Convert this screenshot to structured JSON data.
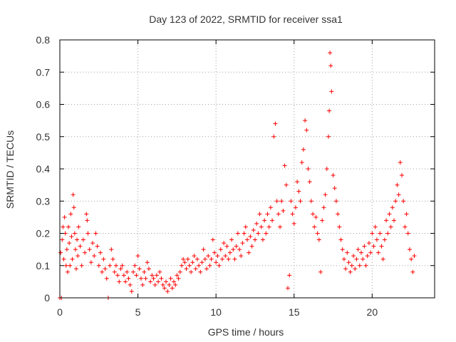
{
  "chart_data": {
    "type": "scatter",
    "title": "Day 123 of 2022, SRMTID for receiver ssa1",
    "xlabel": "GPS time / hours",
    "ylabel": "SRMTID / TECUs",
    "xlim": [
      0,
      24
    ],
    "ylim": [
      0,
      0.8
    ],
    "xticks": [
      0,
      5,
      10,
      15,
      20
    ],
    "yticks": [
      0,
      0.1,
      0.2,
      0.3,
      0.4,
      0.5,
      0.6,
      0.7,
      0.8
    ],
    "xtick_labels": [
      "0",
      "5",
      "10",
      "15",
      "20"
    ],
    "ytick_labels": [
      "0",
      "0.1",
      "0.2",
      "0.3",
      "0.4",
      "0.5",
      "0.6",
      "0.7",
      "0.8"
    ],
    "grid": true,
    "marker": "+",
    "color": "#ff0000",
    "series": [
      {
        "name": "SRMTID",
        "points": [
          [
            0.0,
            0.0
          ],
          [
            0.05,
            0.14
          ],
          [
            0.1,
            0.0
          ],
          [
            0.15,
            0.18
          ],
          [
            0.2,
            0.22
          ],
          [
            0.25,
            0.12
          ],
          [
            0.3,
            0.25
          ],
          [
            0.35,
            0.2
          ],
          [
            0.4,
            0.1
          ],
          [
            0.45,
            0.15
          ],
          [
            0.5,
            0.08
          ],
          [
            0.55,
            0.22
          ],
          [
            0.6,
            0.17
          ],
          [
            0.65,
            0.1
          ],
          [
            0.7,
            0.26
          ],
          [
            0.75,
            0.19
          ],
          [
            0.8,
            0.12
          ],
          [
            0.85,
            0.32
          ],
          [
            0.9,
            0.28
          ],
          [
            0.95,
            0.2
          ],
          [
            1.0,
            0.15
          ],
          [
            1.05,
            0.09
          ],
          [
            1.1,
            0.18
          ],
          [
            1.15,
            0.13
          ],
          [
            1.2,
            0.22
          ],
          [
            1.3,
            0.16
          ],
          [
            1.4,
            0.1
          ],
          [
            1.5,
            0.18
          ],
          [
            1.6,
            0.14
          ],
          [
            1.7,
            0.26
          ],
          [
            1.75,
            0.24
          ],
          [
            1.8,
            0.2
          ],
          [
            1.9,
            0.15
          ],
          [
            2.0,
            0.11
          ],
          [
            2.1,
            0.17
          ],
          [
            2.2,
            0.13
          ],
          [
            2.3,
            0.2
          ],
          [
            2.4,
            0.16
          ],
          [
            2.5,
            0.1
          ],
          [
            2.6,
            0.14
          ],
          [
            2.7,
            0.08
          ],
          [
            2.8,
            0.12
          ],
          [
            2.9,
            0.09
          ],
          [
            3.0,
            0.06
          ],
          [
            3.1,
            0.0
          ],
          [
            3.2,
            0.1
          ],
          [
            3.3,
            0.15
          ],
          [
            3.4,
            0.12
          ],
          [
            3.5,
            0.08
          ],
          [
            3.6,
            0.1
          ],
          [
            3.7,
            0.07
          ],
          [
            3.8,
            0.05
          ],
          [
            3.9,
            0.09
          ],
          [
            4.0,
            0.1
          ],
          [
            4.1,
            0.07
          ],
          [
            4.2,
            0.05
          ],
          [
            4.3,
            0.08
          ],
          [
            4.4,
            0.06
          ],
          [
            4.5,
            0.04
          ],
          [
            4.6,
            0.02
          ],
          [
            4.7,
            0.08
          ],
          [
            4.8,
            0.1
          ],
          [
            4.9,
            0.07
          ],
          [
            5.0,
            0.13
          ],
          [
            5.1,
            0.09
          ],
          [
            5.2,
            0.06
          ],
          [
            5.3,
            0.04
          ],
          [
            5.4,
            0.08
          ],
          [
            5.5,
            0.06
          ],
          [
            5.6,
            0.11
          ],
          [
            5.7,
            0.09
          ],
          [
            5.8,
            0.05
          ],
          [
            5.9,
            0.07
          ],
          [
            6.0,
            0.06
          ],
          [
            6.1,
            0.04
          ],
          [
            6.2,
            0.07
          ],
          [
            6.3,
            0.05
          ],
          [
            6.4,
            0.08
          ],
          [
            6.5,
            0.06
          ],
          [
            6.6,
            0.04
          ],
          [
            6.7,
            0.03
          ],
          [
            6.8,
            0.05
          ],
          [
            6.9,
            0.02
          ],
          [
            7.0,
            0.04
          ],
          [
            7.1,
            0.06
          ],
          [
            7.2,
            0.03
          ],
          [
            7.3,
            0.05
          ],
          [
            7.4,
            0.04
          ],
          [
            7.5,
            0.07
          ],
          [
            7.6,
            0.06
          ],
          [
            7.7,
            0.08
          ],
          [
            7.8,
            0.1
          ],
          [
            7.9,
            0.12
          ],
          [
            8.0,
            0.11
          ],
          [
            8.1,
            0.09
          ],
          [
            8.2,
            0.12
          ],
          [
            8.3,
            0.1
          ],
          [
            8.4,
            0.08
          ],
          [
            8.5,
            0.11
          ],
          [
            8.6,
            0.13
          ],
          [
            8.7,
            0.09
          ],
          [
            8.8,
            0.12
          ],
          [
            8.9,
            0.1
          ],
          [
            9.0,
            0.08
          ],
          [
            9.1,
            0.11
          ],
          [
            9.2,
            0.15
          ],
          [
            9.3,
            0.12
          ],
          [
            9.4,
            0.09
          ],
          [
            9.5,
            0.13
          ],
          [
            9.6,
            0.1
          ],
          [
            9.7,
            0.12
          ],
          [
            9.8,
            0.18
          ],
          [
            9.9,
            0.14
          ],
          [
            10.0,
            0.11
          ],
          [
            10.1,
            0.13
          ],
          [
            10.2,
            0.1
          ],
          [
            10.3,
            0.15
          ],
          [
            10.4,
            0.12
          ],
          [
            10.5,
            0.17
          ],
          [
            10.6,
            0.13
          ],
          [
            10.7,
            0.16
          ],
          [
            10.8,
            0.12
          ],
          [
            10.9,
            0.14
          ],
          [
            11.0,
            0.18
          ],
          [
            11.1,
            0.15
          ],
          [
            11.2,
            0.12
          ],
          [
            11.3,
            0.16
          ],
          [
            11.4,
            0.2
          ],
          [
            11.5,
            0.15
          ],
          [
            11.6,
            0.13
          ],
          [
            11.7,
            0.17
          ],
          [
            11.8,
            0.2
          ],
          [
            11.9,
            0.22
          ],
          [
            12.0,
            0.18
          ],
          [
            12.1,
            0.14
          ],
          [
            12.2,
            0.19
          ],
          [
            12.3,
            0.16
          ],
          [
            12.4,
            0.21
          ],
          [
            12.5,
            0.18
          ],
          [
            12.6,
            0.23
          ],
          [
            12.7,
            0.2
          ],
          [
            12.8,
            0.26
          ],
          [
            12.9,
            0.22
          ],
          [
            13.0,
            0.18
          ],
          [
            13.1,
            0.24
          ],
          [
            13.2,
            0.2
          ],
          [
            13.3,
            0.26
          ],
          [
            13.4,
            0.22
          ],
          [
            13.5,
            0.28
          ],
          [
            13.6,
            0.24
          ],
          [
            13.7,
            0.5
          ],
          [
            13.8,
            0.54
          ],
          [
            13.9,
            0.3
          ],
          [
            14.0,
            0.26
          ],
          [
            14.1,
            0.22
          ],
          [
            14.2,
            0.3
          ],
          [
            14.3,
            0.27
          ],
          [
            14.4,
            0.41
          ],
          [
            14.5,
            0.35
          ],
          [
            14.6,
            0.03
          ],
          [
            14.7,
            0.07
          ],
          [
            14.8,
            0.3
          ],
          [
            14.9,
            0.26
          ],
          [
            15.0,
            0.23
          ],
          [
            15.1,
            0.28
          ],
          [
            15.2,
            0.36
          ],
          [
            15.3,
            0.33
          ],
          [
            15.4,
            0.3
          ],
          [
            15.5,
            0.42
          ],
          [
            15.6,
            0.46
          ],
          [
            15.7,
            0.55
          ],
          [
            15.8,
            0.52
          ],
          [
            15.9,
            0.4
          ],
          [
            16.0,
            0.36
          ],
          [
            16.1,
            0.3
          ],
          [
            16.2,
            0.26
          ],
          [
            16.3,
            0.22
          ],
          [
            16.4,
            0.25
          ],
          [
            16.5,
            0.2
          ],
          [
            16.6,
            0.18
          ],
          [
            16.7,
            0.08
          ],
          [
            16.8,
            0.24
          ],
          [
            16.9,
            0.28
          ],
          [
            17.0,
            0.32
          ],
          [
            17.1,
            0.4
          ],
          [
            17.2,
            0.5
          ],
          [
            17.25,
            0.58
          ],
          [
            17.3,
            0.76
          ],
          [
            17.35,
            0.72
          ],
          [
            17.4,
            0.64
          ],
          [
            17.5,
            0.38
          ],
          [
            17.6,
            0.34
          ],
          [
            17.7,
            0.3
          ],
          [
            17.8,
            0.26
          ],
          [
            17.9,
            0.22
          ],
          [
            18.0,
            0.18
          ],
          [
            18.1,
            0.15
          ],
          [
            18.2,
            0.12
          ],
          [
            18.3,
            0.09
          ],
          [
            18.4,
            0.14
          ],
          [
            18.5,
            0.11
          ],
          [
            18.6,
            0.08
          ],
          [
            18.7,
            0.1
          ],
          [
            18.8,
            0.13
          ],
          [
            18.9,
            0.09
          ],
          [
            19.0,
            0.12
          ],
          [
            19.1,
            0.15
          ],
          [
            19.2,
            0.1
          ],
          [
            19.3,
            0.14
          ],
          [
            19.4,
            0.12
          ],
          [
            19.5,
            0.16
          ],
          [
            19.6,
            0.1
          ],
          [
            19.7,
            0.13
          ],
          [
            19.8,
            0.17
          ],
          [
            19.9,
            0.14
          ],
          [
            20.0,
            0.2
          ],
          [
            20.1,
            0.16
          ],
          [
            20.2,
            0.22
          ],
          [
            20.3,
            0.18
          ],
          [
            20.4,
            0.14
          ],
          [
            20.5,
            0.2
          ],
          [
            20.6,
            0.16
          ],
          [
            20.7,
            0.12
          ],
          [
            20.8,
            0.18
          ],
          [
            20.9,
            0.24
          ],
          [
            21.0,
            0.2
          ],
          [
            21.1,
            0.26
          ],
          [
            21.2,
            0.22
          ],
          [
            21.3,
            0.28
          ],
          [
            21.4,
            0.24
          ],
          [
            21.5,
            0.3
          ],
          [
            21.6,
            0.35
          ],
          [
            21.7,
            0.32
          ],
          [
            21.8,
            0.42
          ],
          [
            21.9,
            0.38
          ],
          [
            22.0,
            0.3
          ],
          [
            22.1,
            0.22
          ],
          [
            22.2,
            0.26
          ],
          [
            22.3,
            0.2
          ],
          [
            22.4,
            0.15
          ],
          [
            22.5,
            0.12
          ],
          [
            22.6,
            0.08
          ],
          [
            22.7,
            0.13
          ]
        ]
      }
    ]
  }
}
